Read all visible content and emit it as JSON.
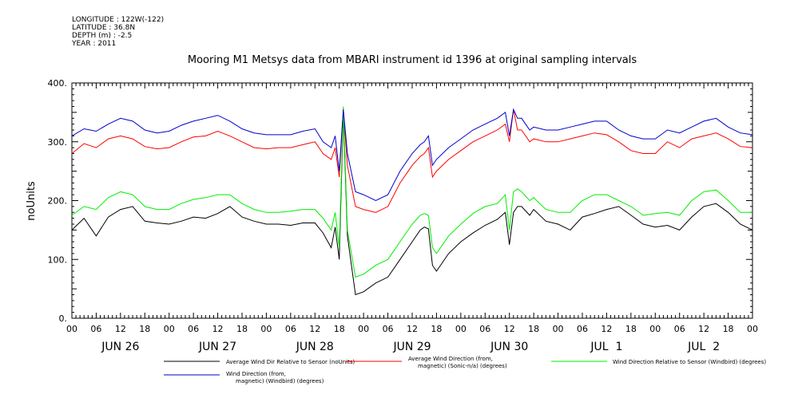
{
  "header": {
    "longitude": "LONGITUDE : 122W(-122)",
    "latitude": "LATITUDE : 36.8N",
    "depth": "DEPTH (m) : -2.5",
    "year": "YEAR : 2011"
  },
  "chart_data": {
    "type": "line",
    "title": "Mooring M1 Metsys data from MBARI instrument id 1396 at original sampling intervals",
    "ylabel": "noUnits",
    "xlabel": "",
    "ylim": [
      0,
      400
    ],
    "yticks": [
      "0.",
      "100.",
      "200.",
      "300.",
      "400."
    ],
    "xlim_hours": [
      0,
      168
    ],
    "hour_ticks": [
      "00",
      "06",
      "12",
      "18",
      "00",
      "06",
      "12",
      "18",
      "00",
      "06",
      "12",
      "18",
      "00",
      "06",
      "12",
      "18",
      "00",
      "06",
      "12",
      "18",
      "00",
      "06",
      "12",
      "18",
      "00",
      "06",
      "12",
      "18",
      "00"
    ],
    "day_labels": [
      "JUN 26",
      "JUN 27",
      "JUN 28",
      "JUN 29",
      "JUN 30",
      "JUL  1",
      "JUL  2"
    ],
    "grid": false,
    "legend_position": "bottom",
    "x": [
      0,
      3,
      6,
      9,
      12,
      15,
      18,
      21,
      24,
      27,
      30,
      33,
      36,
      39,
      42,
      45,
      48,
      51,
      54,
      57,
      60,
      62,
      64,
      65,
      66,
      67,
      68,
      70,
      72,
      75,
      78,
      81,
      84,
      86,
      87,
      88,
      89,
      90,
      93,
      96,
      99,
      102,
      105,
      107,
      108,
      109,
      110,
      111,
      113,
      114,
      117,
      120,
      123,
      126,
      129,
      132,
      135,
      138,
      141,
      144,
      147,
      150,
      153,
      156,
      159,
      162,
      165,
      168
    ],
    "series": [
      {
        "name": "Average Wind Dir Relative to Sensor (noUnits)",
        "color": "#000000",
        "values": [
          150,
          170,
          140,
          172,
          185,
          190,
          165,
          162,
          160,
          165,
          172,
          170,
          178,
          190,
          172,
          165,
          160,
          160,
          158,
          162,
          162,
          145,
          120,
          155,
          100,
          350,
          140,
          40,
          45,
          60,
          70,
          100,
          130,
          150,
          155,
          152,
          90,
          80,
          110,
          130,
          145,
          158,
          168,
          180,
          125,
          180,
          190,
          190,
          175,
          185,
          165,
          160,
          150,
          172,
          178,
          185,
          190,
          175,
          160,
          155,
          158,
          150,
          172,
          190,
          195,
          180,
          160,
          150
        ]
      },
      {
        "name": "Average Wind Direction (from, magnetic) (Sonic-n/a) (degrees)",
        "color": "#ff0000",
        "values": [
          280,
          297,
          290,
          305,
          310,
          305,
          292,
          288,
          290,
          300,
          308,
          310,
          318,
          310,
          300,
          290,
          288,
          290,
          290,
          295,
          300,
          280,
          270,
          290,
          240,
          355,
          260,
          190,
          185,
          180,
          190,
          230,
          260,
          275,
          280,
          290,
          240,
          250,
          270,
          285,
          300,
          310,
          320,
          330,
          300,
          355,
          320,
          320,
          300,
          305,
          300,
          300,
          305,
          310,
          315,
          312,
          300,
          285,
          280,
          280,
          300,
          290,
          305,
          310,
          315,
          305,
          292,
          290
        ]
      },
      {
        "name": "Wind Direction Relative to Sensor (Windbird) (degrees)",
        "color": "#00ee00",
        "values": [
          175,
          190,
          185,
          205,
          215,
          210,
          190,
          185,
          185,
          195,
          202,
          205,
          210,
          210,
          195,
          185,
          180,
          180,
          182,
          185,
          185,
          170,
          150,
          180,
          120,
          360,
          150,
          70,
          75,
          90,
          100,
          130,
          160,
          175,
          178,
          175,
          120,
          110,
          140,
          160,
          178,
          190,
          195,
          210,
          150,
          215,
          220,
          215,
          200,
          205,
          185,
          180,
          180,
          200,
          210,
          210,
          200,
          190,
          175,
          178,
          180,
          175,
          200,
          215,
          218,
          200,
          180,
          180
        ]
      },
      {
        "name": "Wind Direction (from, magnetic) (Windbird) (degrees)",
        "color": "#0000cc",
        "values": [
          310,
          322,
          318,
          330,
          340,
          335,
          320,
          315,
          318,
          328,
          335,
          340,
          345,
          335,
          322,
          315,
          312,
          312,
          312,
          318,
          322,
          300,
          290,
          310,
          250,
          355,
          280,
          215,
          210,
          200,
          210,
          250,
          280,
          295,
          300,
          310,
          260,
          270,
          290,
          305,
          320,
          330,
          340,
          350,
          310,
          355,
          340,
          340,
          320,
          325,
          320,
          320,
          325,
          330,
          335,
          335,
          320,
          310,
          305,
          305,
          320,
          315,
          325,
          335,
          340,
          325,
          315,
          312
        ]
      }
    ]
  }
}
